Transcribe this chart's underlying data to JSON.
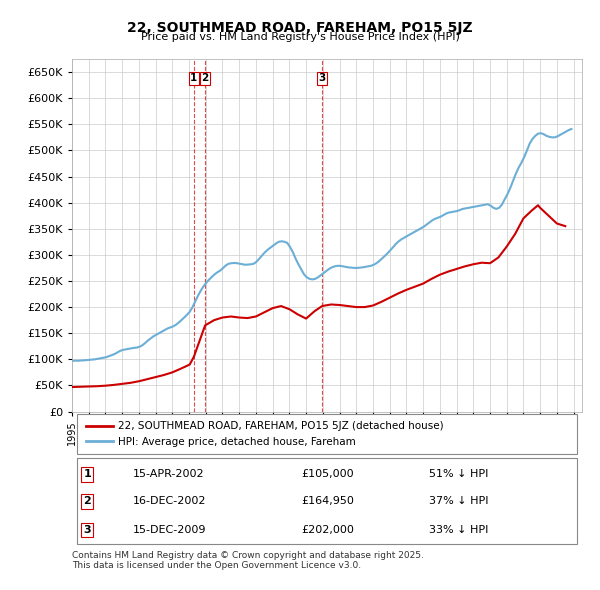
{
  "title": "22, SOUTHMEAD ROAD, FAREHAM, PO15 5JZ",
  "subtitle": "Price paid vs. HM Land Registry's House Price Index (HPI)",
  "hpi_color": "#6baed6",
  "price_color": "#cc0000",
  "vline_color": "#cc0000",
  "background_color": "#ffffff",
  "plot_bg_color": "#ffffff",
  "grid_color": "#cccccc",
  "ylim": [
    0,
    675000
  ],
  "yticks": [
    0,
    50000,
    100000,
    150000,
    200000,
    250000,
    300000,
    350000,
    400000,
    450000,
    500000,
    550000,
    600000,
    650000
  ],
  "ytick_labels": [
    "£0",
    "£50K",
    "£100K",
    "£150K",
    "£200K",
    "£250K",
    "£300K",
    "£350K",
    "£400K",
    "£450K",
    "£500K",
    "£550K",
    "£600K",
    "£650K"
  ],
  "xlim_start": 1995.0,
  "xlim_end": 2025.5,
  "transactions": [
    {
      "num": 1,
      "date_dec": 2002.29,
      "price": 105000,
      "date_str": "15-APR-2002",
      "price_str": "£105,000",
      "pct": "51% ↓ HPI"
    },
    {
      "num": 2,
      "date_dec": 2002.96,
      "price": 164950,
      "date_str": "16-DEC-2002",
      "price_str": "£164,950",
      "pct": "37% ↓ HPI"
    },
    {
      "num": 3,
      "date_dec": 2009.96,
      "price": 202000,
      "date_str": "15-DEC-2009",
      "price_str": "£202,000",
      "pct": "33% ↓ HPI"
    }
  ],
  "legend_label_price": "22, SOUTHMEAD ROAD, FAREHAM, PO15 5JZ (detached house)",
  "legend_label_hpi": "HPI: Average price, detached house, Fareham",
  "footnote": "Contains HM Land Registry data © Crown copyright and database right 2025.\nThis data is licensed under the Open Government Licence v3.0.",
  "hpi_data": {
    "years": [
      1995.04,
      1995.21,
      1995.37,
      1995.54,
      1995.71,
      1995.87,
      1996.04,
      1996.21,
      1996.37,
      1996.54,
      1996.71,
      1996.87,
      1997.04,
      1997.21,
      1997.37,
      1997.54,
      1997.71,
      1997.87,
      1998.04,
      1998.21,
      1998.37,
      1998.54,
      1998.71,
      1998.87,
      1999.04,
      1999.21,
      1999.37,
      1999.54,
      1999.71,
      1999.87,
      2000.04,
      2000.21,
      2000.37,
      2000.54,
      2000.71,
      2000.87,
      2001.04,
      2001.21,
      2001.37,
      2001.54,
      2001.71,
      2001.87,
      2002.04,
      2002.21,
      2002.37,
      2002.54,
      2002.71,
      2002.87,
      2003.04,
      2003.21,
      2003.37,
      2003.54,
      2003.71,
      2003.87,
      2004.04,
      2004.21,
      2004.37,
      2004.54,
      2004.71,
      2004.87,
      2005.04,
      2005.21,
      2005.37,
      2005.54,
      2005.71,
      2005.87,
      2006.04,
      2006.21,
      2006.37,
      2006.54,
      2006.71,
      2006.87,
      2007.04,
      2007.21,
      2007.37,
      2007.54,
      2007.71,
      2007.87,
      2008.04,
      2008.21,
      2008.37,
      2008.54,
      2008.71,
      2008.87,
      2009.04,
      2009.21,
      2009.37,
      2009.54,
      2009.71,
      2009.87,
      2010.04,
      2010.21,
      2010.37,
      2010.54,
      2010.71,
      2010.87,
      2011.04,
      2011.21,
      2011.37,
      2011.54,
      2011.71,
      2011.87,
      2012.04,
      2012.21,
      2012.37,
      2012.54,
      2012.71,
      2012.87,
      2013.04,
      2013.21,
      2013.37,
      2013.54,
      2013.71,
      2013.87,
      2014.04,
      2014.21,
      2014.37,
      2014.54,
      2014.71,
      2014.87,
      2015.04,
      2015.21,
      2015.37,
      2015.54,
      2015.71,
      2015.87,
      2016.04,
      2016.21,
      2016.37,
      2016.54,
      2016.71,
      2016.87,
      2017.04,
      2017.21,
      2017.37,
      2017.54,
      2017.71,
      2017.87,
      2018.04,
      2018.21,
      2018.37,
      2018.54,
      2018.71,
      2018.87,
      2019.04,
      2019.21,
      2019.37,
      2019.54,
      2019.71,
      2019.87,
      2020.04,
      2020.21,
      2020.37,
      2020.54,
      2020.71,
      2020.87,
      2021.04,
      2021.21,
      2021.37,
      2021.54,
      2021.71,
      2021.87,
      2022.04,
      2022.21,
      2022.37,
      2022.54,
      2022.71,
      2022.87,
      2023.04,
      2023.21,
      2023.37,
      2023.54,
      2023.71,
      2023.87,
      2024.04,
      2024.21,
      2024.37,
      2024.54,
      2024.71,
      2024.87
    ],
    "values": [
      97000,
      97500,
      97200,
      97800,
      98000,
      98500,
      99000,
      99500,
      100000,
      101000,
      102000,
      103000,
      104000,
      106000,
      108000,
      110000,
      113000,
      116000,
      118000,
      119000,
      120000,
      121000,
      122000,
      122500,
      124000,
      127000,
      131000,
      136000,
      140000,
      144000,
      147000,
      150000,
      153000,
      156000,
      159000,
      161000,
      163000,
      166000,
      170000,
      175000,
      180000,
      185000,
      191000,
      200000,
      211000,
      222000,
      232000,
      240000,
      247000,
      253000,
      258000,
      263000,
      267000,
      270000,
      275000,
      280000,
      283000,
      284000,
      284500,
      284000,
      283000,
      282000,
      281000,
      281500,
      282000,
      283000,
      287000,
      293000,
      299000,
      305000,
      310000,
      314000,
      318000,
      322000,
      325000,
      326000,
      325000,
      323000,
      315000,
      305000,
      293000,
      282000,
      272000,
      263000,
      257000,
      254000,
      253000,
      254000,
      257000,
      261000,
      265000,
      269000,
      273000,
      276000,
      278000,
      279000,
      279000,
      278000,
      277000,
      276000,
      275500,
      275000,
      275000,
      275500,
      276000,
      277000,
      278000,
      279000,
      281000,
      284000,
      288000,
      293000,
      298000,
      303000,
      309000,
      315000,
      321000,
      326000,
      330000,
      333000,
      336000,
      339000,
      342000,
      345000,
      348000,
      351000,
      354000,
      358000,
      362000,
      366000,
      369000,
      371000,
      373000,
      376000,
      379000,
      381000,
      382000,
      383000,
      384000,
      386000,
      388000,
      389000,
      390000,
      391000,
      392000,
      393000,
      394000,
      395000,
      396000,
      397000,
      394000,
      390000,
      388000,
      390000,
      396000,
      406000,
      416000,
      428000,
      441000,
      455000,
      467000,
      476000,
      487000,
      500000,
      513000,
      522000,
      528000,
      532000,
      533000,
      531000,
      528000,
      526000,
      525000,
      525000,
      527000,
      530000,
      533000,
      536000,
      539000,
      541000
    ]
  },
  "price_series": {
    "years": [
      1995.04,
      1995.5,
      1996.0,
      1996.5,
      1997.0,
      1997.5,
      1998.0,
      1998.5,
      1999.0,
      1999.5,
      2000.0,
      2000.5,
      2001.0,
      2001.5,
      2002.04,
      2002.29,
      2002.96,
      2003.5,
      2004.0,
      2004.5,
      2005.0,
      2005.5,
      2006.0,
      2006.5,
      2007.0,
      2007.5,
      2008.0,
      2008.5,
      2009.0,
      2009.5,
      2009.96,
      2010.5,
      2011.0,
      2011.5,
      2012.0,
      2012.5,
      2013.0,
      2013.5,
      2014.0,
      2014.5,
      2015.0,
      2015.5,
      2016.0,
      2016.5,
      2017.0,
      2017.5,
      2018.0,
      2018.5,
      2019.0,
      2019.5,
      2020.0,
      2020.5,
      2021.0,
      2021.5,
      2022.0,
      2022.5,
      2022.87,
      2023.0,
      2023.5,
      2024.0,
      2024.5
    ],
    "values": [
      47000,
      47500,
      48000,
      48500,
      49500,
      51000,
      53000,
      55000,
      58000,
      62000,
      66000,
      70000,
      75000,
      82000,
      90000,
      105000,
      164950,
      175000,
      180000,
      182000,
      180000,
      179000,
      182000,
      190000,
      198000,
      202000,
      196000,
      186000,
      178000,
      192000,
      202000,
      205000,
      204000,
      202000,
      200000,
      200000,
      203000,
      210000,
      218000,
      226000,
      233000,
      239000,
      245000,
      254000,
      262000,
      268000,
      273000,
      278000,
      282000,
      285000,
      284000,
      295000,
      316000,
      340000,
      370000,
      385000,
      395000,
      390000,
      375000,
      360000,
      355000
    ]
  }
}
